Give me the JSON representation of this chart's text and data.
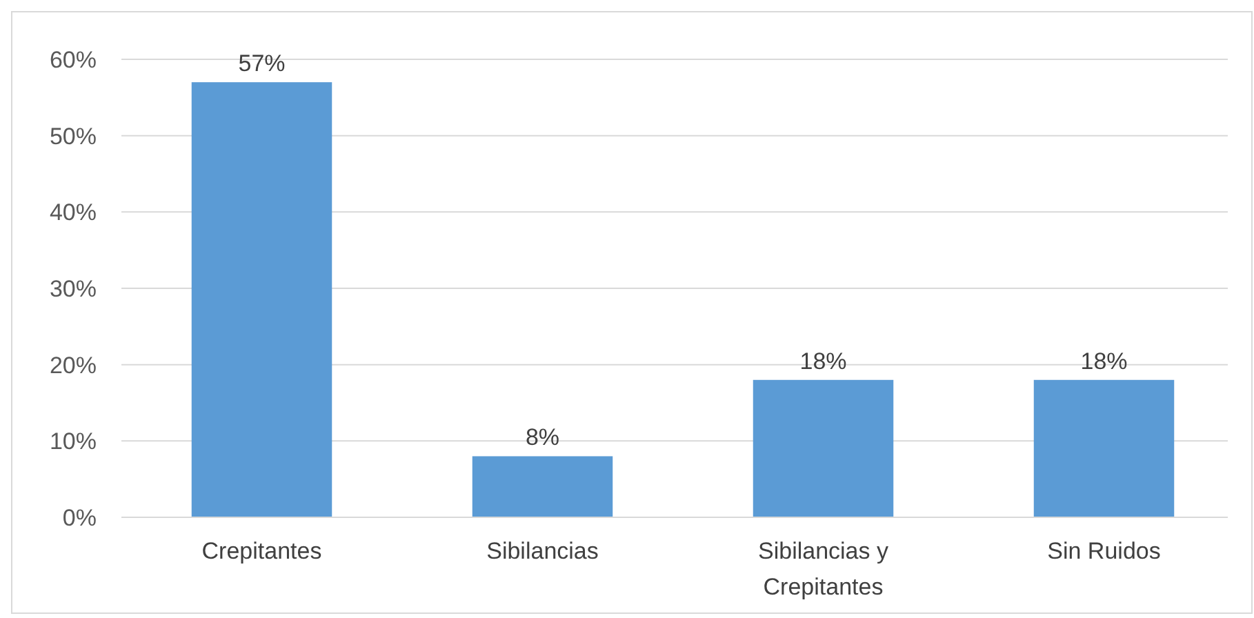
{
  "chart_data": {
    "type": "bar",
    "categories": [
      "Crepitantes",
      "Sibilancias",
      "Sibilancias y Crepitantes",
      "Sin Ruidos"
    ],
    "values": [
      57,
      8,
      18,
      18
    ],
    "value_labels": [
      "57%",
      "8%",
      "18%",
      "18%"
    ],
    "color": "#5b9bd5",
    "ylim": [
      0,
      60
    ],
    "yticks": [
      {
        "value": 0,
        "label": "0%"
      },
      {
        "value": 10,
        "label": "10%"
      },
      {
        "value": 20,
        "label": "20%"
      },
      {
        "value": 30,
        "label": "30%"
      },
      {
        "value": 40,
        "label": "40%"
      },
      {
        "value": 50,
        "label": "50%"
      },
      {
        "value": 60,
        "label": "60%"
      }
    ],
    "grid": "y"
  }
}
